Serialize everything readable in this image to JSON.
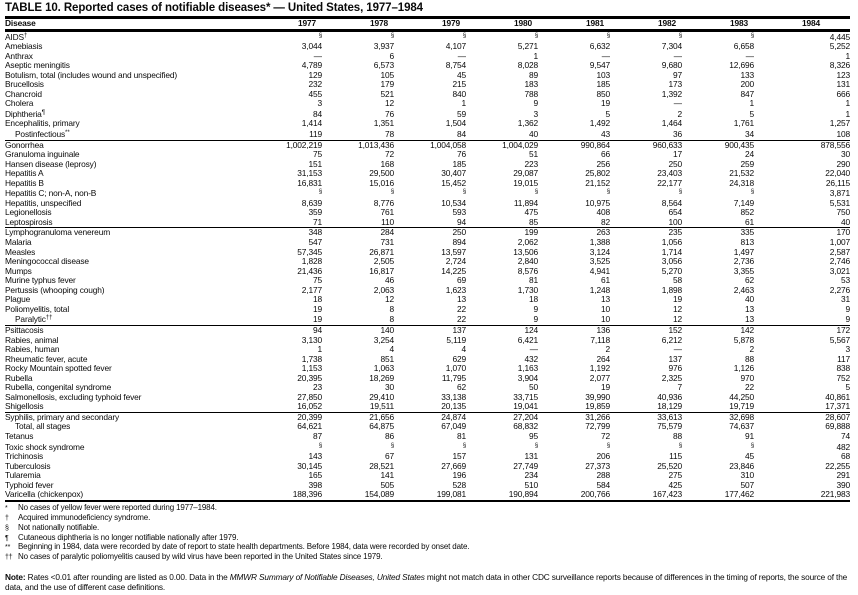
{
  "title": "TABLE 10. Reported cases of notifiable diseases* — United States, 1977–1984",
  "table": {
    "columns": [
      "Disease",
      "1977",
      "1978",
      "1979",
      "1980",
      "1981",
      "1982",
      "1983",
      "1984"
    ],
    "not_notifiable_symbol": "§",
    "zero_symbol": "—",
    "sections": [
      {
        "rows": [
          {
            "d": "AIDS",
            "sup": "†",
            "v": [
              "§",
              "§",
              "§",
              "§",
              "§",
              "§",
              "§",
              "4,445"
            ]
          },
          {
            "d": "Amebiasis",
            "v": [
              "3,044",
              "3,937",
              "4,107",
              "5,271",
              "6,632",
              "7,304",
              "6,658",
              "5,252"
            ]
          },
          {
            "d": "Anthrax",
            "v": [
              "—",
              "6",
              "—",
              "1",
              "—",
              "—",
              "—",
              "1"
            ]
          },
          {
            "d": "Aseptic meningitis",
            "v": [
              "4,789",
              "6,573",
              "8,754",
              "8,028",
              "9,547",
              "9,680",
              "12,696",
              "8,326"
            ]
          },
          {
            "d": "Botulism, total (includes wound and unspecified)",
            "v": [
              "129",
              "105",
              "45",
              "89",
              "103",
              "97",
              "133",
              "123"
            ]
          },
          {
            "d": "Brucellosis",
            "v": [
              "232",
              "179",
              "215",
              "183",
              "185",
              "173",
              "200",
              "131"
            ]
          },
          {
            "d": "Chancroid",
            "v": [
              "455",
              "521",
              "840",
              "788",
              "850",
              "1,392",
              "847",
              "666"
            ]
          },
          {
            "d": "Cholera",
            "v": [
              "3",
              "12",
              "1",
              "9",
              "19",
              "—",
              "1",
              "1"
            ]
          },
          {
            "d": "Diphtheria",
            "sup": "¶",
            "v": [
              "84",
              "76",
              "59",
              "3",
              "5",
              "2",
              "5",
              "1"
            ]
          },
          {
            "d": "Encephalitis, primary",
            "v": [
              "1,414",
              "1,351",
              "1,504",
              "1,362",
              "1,492",
              "1,464",
              "1,761",
              "1,257"
            ]
          },
          {
            "d": "Postinfectious",
            "sup": "**",
            "indent": 1,
            "v": [
              "119",
              "78",
              "84",
              "40",
              "43",
              "36",
              "34",
              "108"
            ]
          }
        ]
      },
      {
        "rows": [
          {
            "d": "Gonorrhea",
            "v": [
              "1,002,219",
              "1,013,436",
              "1,004,058",
              "1,004,029",
              "990,864",
              "960,633",
              "900,435",
              "878,556"
            ]
          },
          {
            "d": "Granuloma inguinale",
            "v": [
              "75",
              "72",
              "76",
              "51",
              "66",
              "17",
              "24",
              "30"
            ]
          },
          {
            "d": "Hansen disease (leprosy)",
            "v": [
              "151",
              "168",
              "185",
              "223",
              "256",
              "250",
              "259",
              "290"
            ]
          },
          {
            "d": "Hepatitis A",
            "v": [
              "31,153",
              "29,500",
              "30,407",
              "29,087",
              "25,802",
              "23,403",
              "21,532",
              "22,040"
            ]
          },
          {
            "d": "Hepatitis B",
            "v": [
              "16,831",
              "15,016",
              "15,452",
              "19,015",
              "21,152",
              "22,177",
              "24,318",
              "26,115"
            ]
          },
          {
            "d": "Hepatitis C; non-A, non-B",
            "v": [
              "§",
              "§",
              "§",
              "§",
              "§",
              "§",
              "§",
              "3,871"
            ]
          },
          {
            "d": "Hepatitis, unspecified",
            "v": [
              "8,639",
              "8,776",
              "10,534",
              "11,894",
              "10,975",
              "8,564",
              "7,149",
              "5,531"
            ]
          },
          {
            "d": "Legionellosis",
            "v": [
              "359",
              "761",
              "593",
              "475",
              "408",
              "654",
              "852",
              "750"
            ]
          },
          {
            "d": "Leptospirosis",
            "v": [
              "71",
              "110",
              "94",
              "85",
              "82",
              "100",
              "61",
              "40"
            ]
          }
        ]
      },
      {
        "rows": [
          {
            "d": "Lymphogranuloma venereum",
            "v": [
              "348",
              "284",
              "250",
              "199",
              "263",
              "235",
              "335",
              "170"
            ]
          },
          {
            "d": "Malaria",
            "v": [
              "547",
              "731",
              "894",
              "2,062",
              "1,388",
              "1,056",
              "813",
              "1,007"
            ]
          },
          {
            "d": "Measles",
            "v": [
              "57,345",
              "26,871",
              "13,597",
              "13,506",
              "3,124",
              "1,714",
              "1,497",
              "2,587"
            ]
          },
          {
            "d": "Meningococcal disease",
            "v": [
              "1,828",
              "2,505",
              "2,724",
              "2,840",
              "3,525",
              "3,056",
              "2,736",
              "2,746"
            ]
          },
          {
            "d": "Mumps",
            "v": [
              "21,436",
              "16,817",
              "14,225",
              "8,576",
              "4,941",
              "5,270",
              "3,355",
              "3,021"
            ]
          },
          {
            "d": "Murine typhus fever",
            "v": [
              "75",
              "46",
              "69",
              "81",
              "61",
              "58",
              "62",
              "53"
            ]
          },
          {
            "d": "Pertussis (whooping cough)",
            "v": [
              "2,177",
              "2,063",
              "1,623",
              "1,730",
              "1,248",
              "1,898",
              "2,463",
              "2,276"
            ]
          },
          {
            "d": "Plague",
            "v": [
              "18",
              "12",
              "13",
              "18",
              "13",
              "19",
              "40",
              "31"
            ]
          },
          {
            "d": "Poliomyelitis, total",
            "v": [
              "19",
              "8",
              "22",
              "9",
              "10",
              "12",
              "13",
              "9"
            ]
          },
          {
            "d": "Paralytic",
            "sup": "††",
            "indent": 1,
            "v": [
              "19",
              "8",
              "22",
              "9",
              "10",
              "12",
              "13",
              "9"
            ]
          }
        ]
      },
      {
        "rows": [
          {
            "d": "Psittacosis",
            "v": [
              "94",
              "140",
              "137",
              "124",
              "136",
              "152",
              "142",
              "172"
            ]
          },
          {
            "d": "Rabies, animal",
            "v": [
              "3,130",
              "3,254",
              "5,119",
              "6,421",
              "7,118",
              "6,212",
              "5,878",
              "5,567"
            ]
          },
          {
            "d": "Rabies, human",
            "v": [
              "1",
              "4",
              "4",
              "—",
              "2",
              "—",
              "2",
              "3"
            ]
          },
          {
            "d": "Rheumatic fever, acute",
            "v": [
              "1,738",
              "851",
              "629",
              "432",
              "264",
              "137",
              "88",
              "117"
            ]
          },
          {
            "d": "Rocky Mountain spotted fever",
            "v": [
              "1,153",
              "1,063",
              "1,070",
              "1,163",
              "1,192",
              "976",
              "1,126",
              "838"
            ]
          },
          {
            "d": "Rubella",
            "v": [
              "20,395",
              "18,269",
              "11,795",
              "3,904",
              "2,077",
              "2,325",
              "970",
              "752"
            ]
          },
          {
            "d": "Rubella, congenital syndrome",
            "v": [
              "23",
              "30",
              "62",
              "50",
              "19",
              "7",
              "22",
              "5"
            ]
          },
          {
            "d": "Salmonellosis, excluding typhoid fever",
            "v": [
              "27,850",
              "29,410",
              "33,138",
              "33,715",
              "39,990",
              "40,936",
              "44,250",
              "40,861"
            ]
          },
          {
            "d": "Shigellosis",
            "v": [
              "16,052",
              "19,511",
              "20,135",
              "19,041",
              "19,859",
              "18,129",
              "19,719",
              "17,371"
            ]
          }
        ]
      },
      {
        "rows": [
          {
            "d": "Syphilis, primary and secondary",
            "v": [
              "20,399",
              "21,656",
              "24,874",
              "27,204",
              "31,266",
              "33,613",
              "32,698",
              "28,607"
            ]
          },
          {
            "d": "Total, all stages",
            "indent": 1,
            "v": [
              "64,621",
              "64,875",
              "67,049",
              "68,832",
              "72,799",
              "75,579",
              "74,637",
              "69,888"
            ]
          },
          {
            "d": "Tetanus",
            "v": [
              "87",
              "86",
              "81",
              "95",
              "72",
              "88",
              "91",
              "74"
            ]
          },
          {
            "d": "Toxic shock syndrome",
            "v": [
              "§",
              "§",
              "§",
              "§",
              "§",
              "§",
              "§",
              "482"
            ]
          },
          {
            "d": "Trichinosis",
            "v": [
              "143",
              "67",
              "157",
              "131",
              "206",
              "115",
              "45",
              "68"
            ]
          },
          {
            "d": "Tuberculosis",
            "v": [
              "30,145",
              "28,521",
              "27,669",
              "27,749",
              "27,373",
              "25,520",
              "23,846",
              "22,255"
            ]
          },
          {
            "d": "Tularemia",
            "v": [
              "165",
              "141",
              "196",
              "234",
              "288",
              "275",
              "310",
              "291"
            ]
          },
          {
            "d": "Typhoid fever",
            "v": [
              "398",
              "505",
              "528",
              "510",
              "584",
              "425",
              "507",
              "390"
            ]
          },
          {
            "d": "Varicella (chickenpox)",
            "v": [
              "188,396",
              "154,089",
              "199,081",
              "190,894",
              "200,766",
              "167,423",
              "177,462",
              "221,983"
            ]
          }
        ]
      }
    ]
  },
  "footnotes": [
    {
      "sym": "*",
      "text": "No cases of yellow fever were reported during 1977–1984."
    },
    {
      "sym": "†",
      "text": "Acquired immunodeficiency syndrome."
    },
    {
      "sym": "§",
      "text": "Not nationally notifiable."
    },
    {
      "sym": "¶",
      "text": "Cutaneous diphtheria is no longer notifiable nationally after 1979."
    },
    {
      "sym": "**",
      "text": "Beginning in 1984, data were recorded by date of report to state health departments.  Before 1984, data were recorded by onset date."
    },
    {
      "sym": "††",
      "text": "No cases of paralytic poliomyelitis caused by wild virus have been reported in the United States since 1979."
    }
  ],
  "note": {
    "label": "Note:",
    "pre": " Rates <0.01 after rounding are listed as 0.00. Data in the ",
    "italic": "MMWR Summary of Notifiable Diseases, United States",
    "post": " might not match data in other CDC surveillance reports because of differences in the timing of reports, the source of the data, and the use of different case definitions."
  }
}
